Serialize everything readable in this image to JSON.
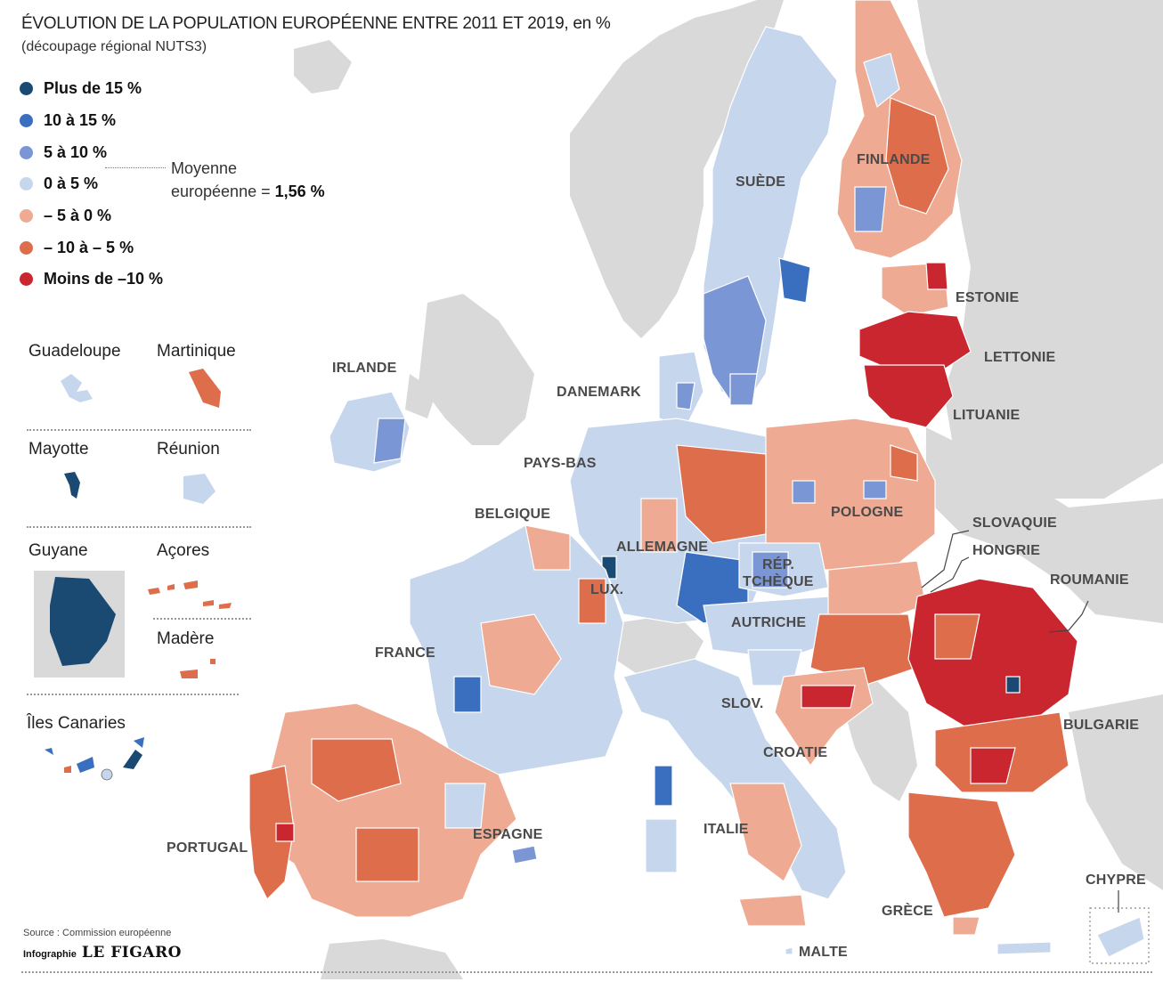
{
  "title": "ÉVOLUTION DE LA POPULATION EUROPÉENNE ENTRE 2011 ET 2019, en %",
  "subtitle": "(découpage régional NUTS3)",
  "legend": [
    {
      "label": "Plus de 15 %",
      "color": "#1a4a72"
    },
    {
      "label": "10 à 15 %",
      "color": "#3a6fbf"
    },
    {
      "label": "5 à 10 %",
      "color": "#7a96d4"
    },
    {
      "label": "0 à 5 %",
      "color": "#c6d6ec"
    },
    {
      "label": "– 5 à 0 %",
      "color": "#eeaa92"
    },
    {
      "label": "– 10 à – 5 %",
      "color": "#de6d4c"
    },
    {
      "label": "Moins de –10 %",
      "color": "#c92630"
    }
  ],
  "average": {
    "prefix": "Moyenne",
    "text": "européenne = ",
    "value": "1,56 %"
  },
  "insets": {
    "guadeloupe": "Guadeloupe",
    "martinique": "Martinique",
    "mayotte": "Mayotte",
    "reunion": "Réunion",
    "guyane": "Guyane",
    "acores": "Açores",
    "madere": "Madère",
    "canaries": "Îles Canaries"
  },
  "countries": {
    "suede": "SUÈDE",
    "finlande": "FINLANDE",
    "estonie": "ESTONIE",
    "lettonie": "LETTONIE",
    "lituanie": "LITUANIE",
    "irlande": "IRLANDE",
    "danemark": "DANEMARK",
    "pays_bas": "PAYS-BAS",
    "belgique": "BELGIQUE",
    "allemagne": "ALLEMAGNE",
    "pologne": "POLOGNE",
    "slovaquie": "SLOVAQUIE",
    "hongrie": "HONGRIE",
    "roumanie": "ROUMANIE",
    "rep_tcheque_1": "RÉP.",
    "rep_tcheque_2": "TCHÈQUE",
    "lux": "LUX.",
    "autriche": "AUTRICHE",
    "france": "FRANCE",
    "slov": "SLOV.",
    "croatie": "CROATIE",
    "bulgarie": "BULGARIE",
    "italie": "ITALIE",
    "espagne": "ESPAGNE",
    "portugal": "PORTUGAL",
    "grece": "GRÈCE",
    "chypre": "CHYPRE",
    "malte": "MALTE"
  },
  "source": "Source : Commission européenne",
  "credit": {
    "prefix": "Infographie",
    "brand": "LE FIGARO"
  },
  "colors": {
    "sea": "#ffffff",
    "non_eu": "#d9d9d9",
    "border": "#ffffff"
  }
}
